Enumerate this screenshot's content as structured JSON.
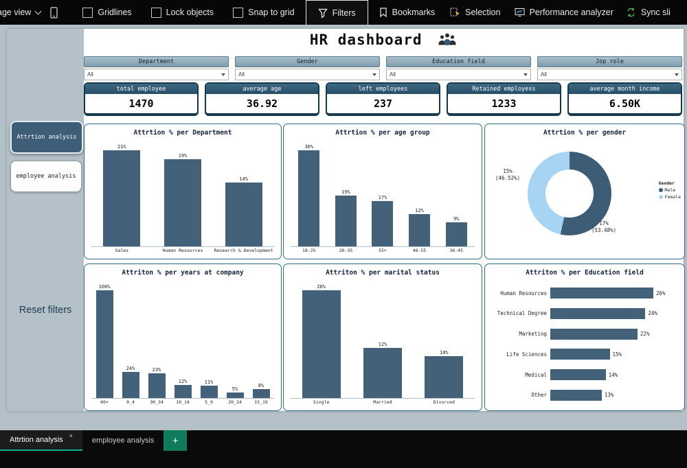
{
  "toolbar": {
    "page_view_label": "age view",
    "checkboxes": [
      {
        "label": "Gridlines",
        "checked": false
      },
      {
        "label": "Lock objects",
        "checked": false
      },
      {
        "label": "Snap to grid",
        "checked": false
      }
    ],
    "filters_label": "Filters",
    "bookmarks_label": "Bookmarks",
    "selection_label": "Selection",
    "performance_label": "Performance analyzer",
    "sync_slicers_label": "Sync sli"
  },
  "dashboard": {
    "title": "HR dashboard",
    "sidebar": {
      "attrition_button": "Attrtion analysis",
      "employee_button": "employee analysis",
      "reset_label": "Reset filters"
    },
    "slicers": [
      {
        "header": "Department",
        "value": "All"
      },
      {
        "header": "Gender",
        "value": "All"
      },
      {
        "header": "Education field",
        "value": "All"
      },
      {
        "header": "Jop role",
        "value": "All"
      }
    ],
    "kpis": [
      {
        "label": "total employee",
        "value": "1470"
      },
      {
        "label": "average age",
        "value": "36.92"
      },
      {
        "label": "left employees",
        "value": "237"
      },
      {
        "label": "Retained employess",
        "value": "1233"
      },
      {
        "label": "average month income",
        "value": "6.50K"
      }
    ]
  },
  "chart_data": [
    {
      "type": "bar",
      "title": "Attrtion % per Department",
      "categories": [
        "Sales",
        "Human Resources",
        "Research & Development"
      ],
      "values": [
        21,
        19,
        14
      ],
      "unit": "%",
      "ylim": [
        0,
        25
      ],
      "grid": false
    },
    {
      "type": "bar",
      "title": "Attrtion % per age group",
      "categories": [
        "18-25",
        "26-35",
        "55+",
        "46-55",
        "36-45"
      ],
      "values": [
        36,
        19,
        17,
        12,
        9
      ],
      "unit": "%",
      "ylim": [
        0,
        40
      ],
      "grid": false
    },
    {
      "type": "donut",
      "title": "Attrtion % per gender",
      "legend_title": "Gender",
      "legend_position": "right",
      "slices": [
        {
          "label": "Male",
          "value_label": "17%",
          "share_label": "(53.48%)",
          "share": 53.48,
          "color": "#3d5c75"
        },
        {
          "label": "Female",
          "value_label": "15%",
          "share_label": "(46.52%)",
          "share": 46.52,
          "color": "#a8d4f4"
        }
      ]
    },
    {
      "type": "bar",
      "title": "Attriton % per years at company",
      "categories": [
        "40+",
        "0_4",
        "30_34",
        "10_14",
        "5_9",
        "20_24",
        "15_19"
      ],
      "values": [
        100,
        24,
        23,
        12,
        11,
        5,
        8
      ],
      "unit": "%",
      "ylim": [
        0,
        100
      ],
      "grid": false
    },
    {
      "type": "bar",
      "title": "Attriton % per marital status",
      "categories": [
        "Single",
        "Married",
        "Divorced"
      ],
      "values": [
        26,
        12,
        10
      ],
      "unit": "%",
      "ylim": [
        0,
        30
      ],
      "grid": false
    },
    {
      "type": "hbar",
      "title": "Attriton % per Education field",
      "categories": [
        "Human Resources",
        "Technical Degree",
        "Marketing",
        "Life Sciences",
        "Medical",
        "Other"
      ],
      "values": [
        26,
        24,
        22,
        15,
        14,
        13
      ],
      "unit": "%",
      "xlim": [
        0,
        30
      ],
      "grid": false
    }
  ],
  "tabs": {
    "items": [
      {
        "label": "Attrtion analysis",
        "active": true
      },
      {
        "label": "employee analysis",
        "active": false
      }
    ],
    "add_label": "+",
    "close_label": "×"
  },
  "colors": {
    "bar": "#44617a",
    "donut_male": "#3d5c75",
    "donut_female": "#a8d4f4",
    "accent": "#00b294",
    "canvas": "#b4c1c9"
  }
}
